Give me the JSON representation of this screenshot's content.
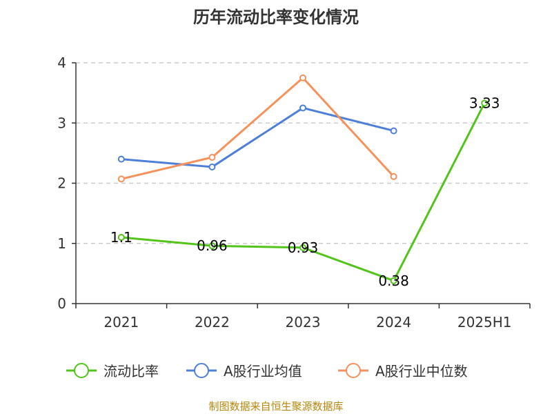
{
  "chart_data": {
    "type": "line",
    "title": "历年流动比率变化情况",
    "categories": [
      "2021",
      "2022",
      "2023",
      "2024",
      "2025H1"
    ],
    "ylim": [
      0,
      4
    ],
    "yticks": [
      "0",
      "1",
      "2",
      "3",
      "4"
    ],
    "grid": true,
    "legend_position": "bottom",
    "series": [
      {
        "name": "流动比率",
        "color": "#52c41a",
        "values": [
          1.1,
          0.96,
          0.93,
          0.38,
          3.33
        ],
        "labels": [
          "1.1",
          "0.96",
          "0.93",
          "0.38",
          "3.33"
        ]
      },
      {
        "name": "A股行业均值",
        "color": "#4e7fd8",
        "values": [
          2.4,
          2.27,
          3.25,
          2.87,
          null
        ]
      },
      {
        "name": "A股行业中位数",
        "color": "#f5915a",
        "values": [
          2.07,
          2.43,
          3.75,
          2.11,
          null
        ]
      }
    ],
    "source": "制图数据来自恒生聚源数据库"
  }
}
